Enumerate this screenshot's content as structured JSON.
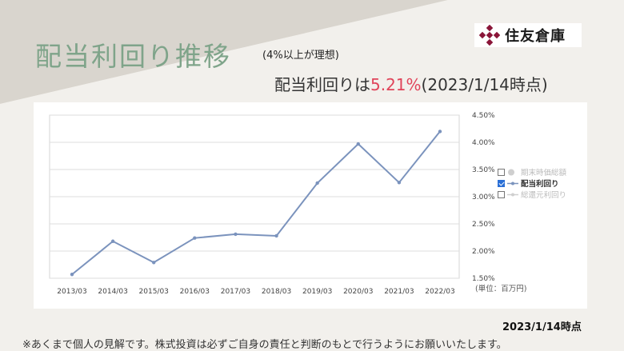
{
  "slide": {
    "title": "配当利回り推移",
    "note": "(4%以上が理想)",
    "headline_prefix": "配当利回りは",
    "headline_value": "5.21%",
    "headline_suffix": "(2023/1/14時点)",
    "as_of": "2023/1/14時点",
    "disclaimer": "※あくまで個人の見解です。株式投資は必ずご自身の責任と判断のもとで行うようにお願いいたします。",
    "accent_color": "#e0445a",
    "title_color": "#7fa48a"
  },
  "logo": {
    "text": "住友倉庫",
    "mark_color": "#8a1538"
  },
  "chart_data": {
    "type": "line",
    "title": "",
    "xlabel": "",
    "ylabel": "",
    "categories": [
      "2013/03",
      "2014/03",
      "2015/03",
      "2016/03",
      "2017/03",
      "2018/03",
      "2019/03",
      "2020/03",
      "2021/03",
      "2022/03"
    ],
    "y_tick_labels": [
      "4.50%",
      "4.00%",
      "3.50%",
      "3.00%",
      "2.50%",
      "2.00%",
      "1.50%"
    ],
    "ylim": [
      1.5,
      4.5
    ],
    "y_ticks": [
      4.5,
      4.0,
      3.5,
      3.0,
      2.5,
      2.0,
      1.5
    ],
    "grid": "horizontal",
    "series": [
      {
        "name": "配当利回り",
        "values": [
          1.57,
          2.18,
          1.79,
          2.24,
          2.31,
          2.28,
          3.25,
          3.97,
          3.26,
          4.2
        ],
        "color": "#7b93bd"
      }
    ],
    "legend": {
      "placement": "right",
      "items": [
        {
          "label": "期末時価総額",
          "checked": false
        },
        {
          "label": "配当利回り",
          "checked": true
        },
        {
          "label": "総還元利回り",
          "checked": false
        }
      ]
    },
    "unit_note": "(単位：百万円)"
  }
}
